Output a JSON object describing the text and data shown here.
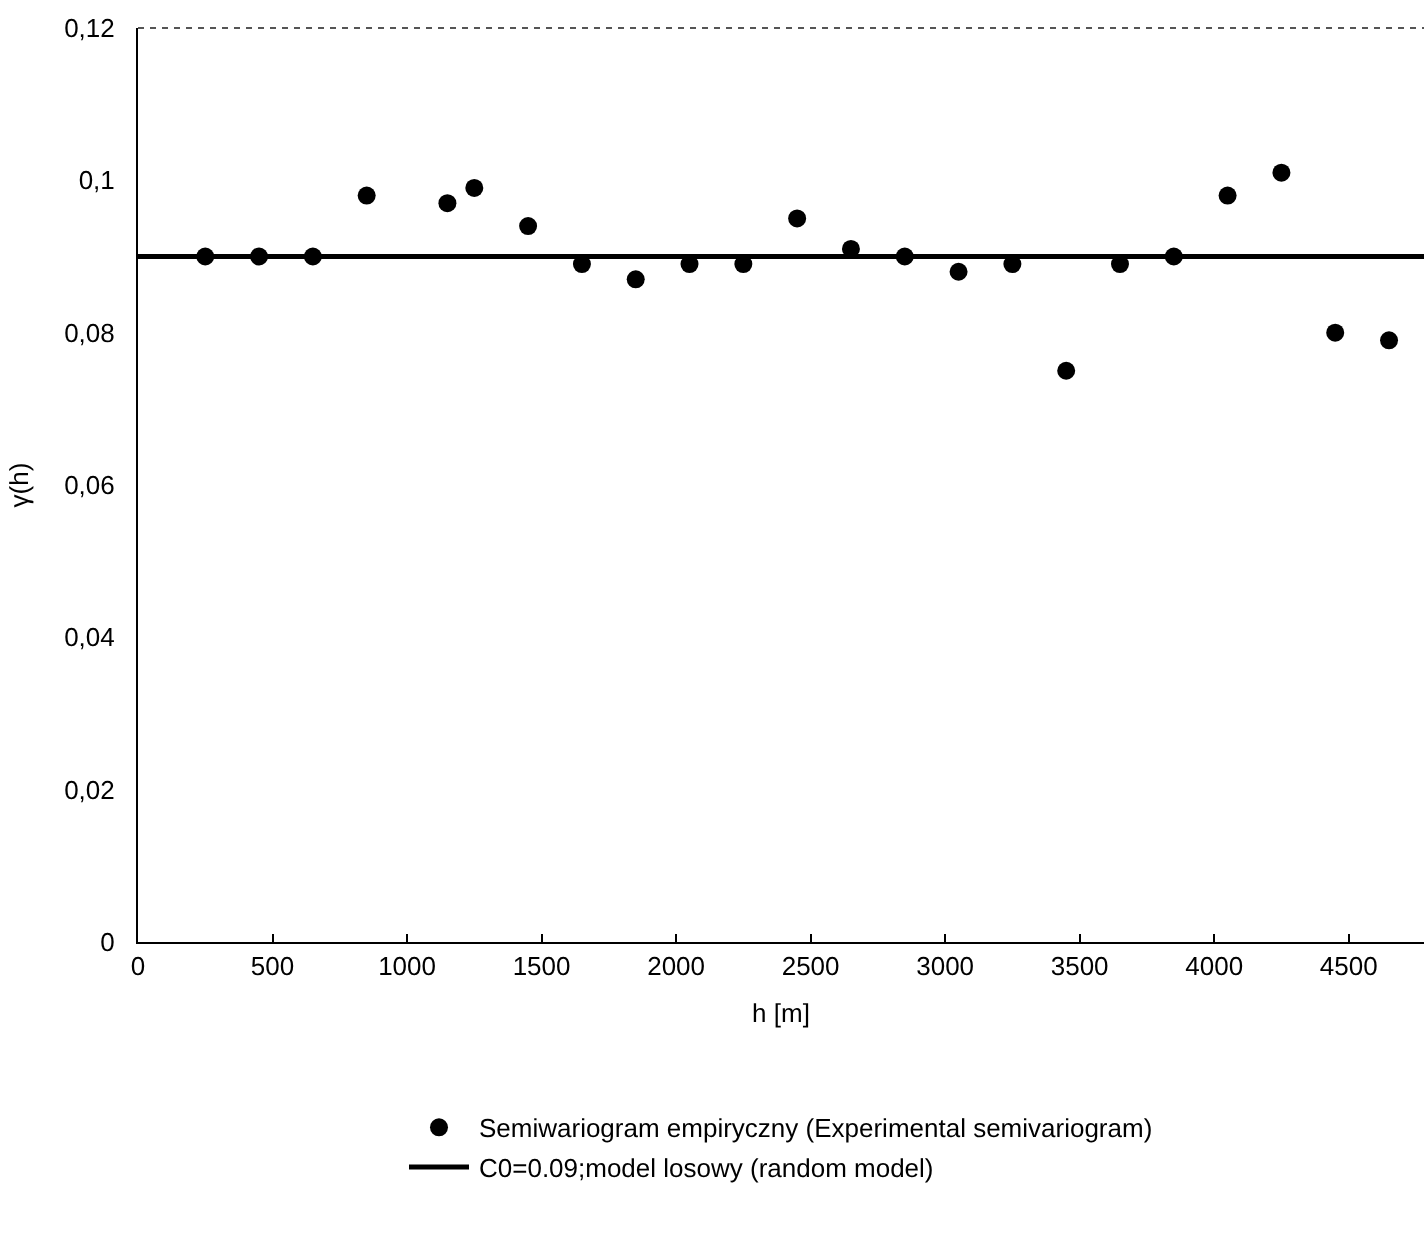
{
  "chart_data": {
    "type": "scatter",
    "xlabel": "h [m]",
    "ylabel": "γ(h)",
    "xlim": [
      0,
      4780
    ],
    "xticks": [
      0,
      500,
      1000,
      1500,
      2000,
      2500,
      3000,
      3500,
      4000,
      4500
    ],
    "ylim": [
      0,
      0.12
    ],
    "yticks": [
      {
        "value": 0,
        "label": "0"
      },
      {
        "value": 0.02,
        "label": "0,02"
      },
      {
        "value": 0.04,
        "label": "0,04"
      },
      {
        "value": 0.06,
        "label": "0,06"
      },
      {
        "value": 0.08,
        "label": "0,08"
      },
      {
        "value": 0.1,
        "label": "0,1"
      },
      {
        "value": 0.12,
        "label": "0,12"
      }
    ],
    "grid": false,
    "legend": "bottom",
    "marker": "circle",
    "series": [
      {
        "name": "Semiwariogram empiryczny (Experimental semivariogram)",
        "color": "#000000",
        "x": [
          250,
          450,
          650,
          850,
          1150,
          1250,
          1450,
          1650,
          1850,
          2050,
          2250,
          2450,
          2650,
          2850,
          3050,
          3250,
          3450,
          3650,
          3850,
          4050,
          4250,
          4450,
          4650
        ],
        "values": [
          0.09,
          0.09,
          0.09,
          0.098,
          0.097,
          0.099,
          0.094,
          0.089,
          0.087,
          0.089,
          0.089,
          0.095,
          0.091,
          0.09,
          0.088,
          0.089,
          0.075,
          0.089,
          0.09,
          0.098,
          0.101,
          0.08,
          0.079
        ]
      },
      {
        "name": "C0=0.09;model losowy (random model)",
        "type": "line",
        "color": "#000000",
        "line_style": "solid",
        "marker": "none",
        "x": [
          0,
          4780
        ],
        "values": [
          0.09,
          0.09
        ]
      }
    ]
  }
}
